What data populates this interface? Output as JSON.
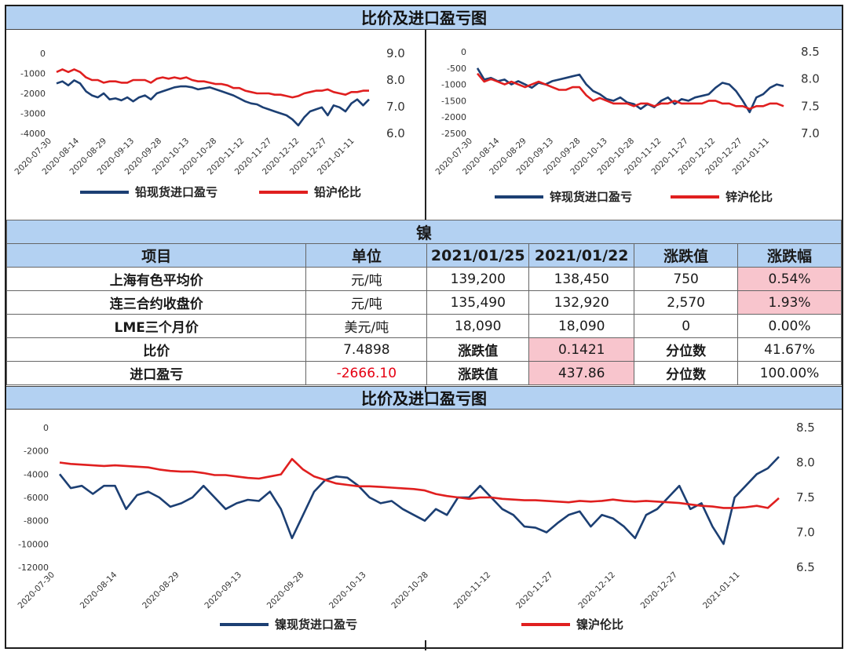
{
  "page": {
    "top_title": "比价及进口盈亏图",
    "mid_title": "比价及进口盈亏图"
  },
  "colors": {
    "blue_series": "#1c3f73",
    "red_series": "#e01f1f",
    "header_bg": "#b3d1f2",
    "highlight": "#f8c5cd"
  },
  "table": {
    "title": "镍",
    "headers": [
      "项目",
      "单位",
      "2021/01/25",
      "2021/01/22",
      "涨跌值",
      "涨跌幅"
    ],
    "rows": [
      {
        "item": "上海有色平均价",
        "unit": "元/吨",
        "v1": "139,200",
        "v2": "138,450",
        "chg": "750",
        "pct": "0.54%"
      },
      {
        "item": "连三合约收盘价",
        "unit": "元/吨",
        "v1": "135,490",
        "v2": "132,920",
        "chg": "2,570",
        "pct": "1.93%"
      },
      {
        "item": "LME三个月价",
        "unit": "美元/吨",
        "v1": "18,090",
        "v2": "18,090",
        "chg": "0",
        "pct": "0.00%"
      }
    ],
    "ratio_row": {
      "item": "比价",
      "value": "7.4898",
      "chg_label": "涨跌值",
      "chg": "0.1421",
      "pct_label": "分位数",
      "pct": "41.67%"
    },
    "import_row": {
      "item": "进口盈亏",
      "value": "-2666.10",
      "chg_label": "涨跌值",
      "chg": "437.86",
      "pct_label": "分位数",
      "pct": "100.00%"
    }
  },
  "chart_data": [
    {
      "id": "lead",
      "type": "line",
      "x_ticks": [
        "2020-07-30",
        "2020-08-14",
        "2020-08-29",
        "2020-09-13",
        "2020-09-28",
        "2020-10-13",
        "2020-10-28",
        "2020-11-12",
        "2020-11-27",
        "2020-12-12",
        "2020-12-27",
        "2021-01-11"
      ],
      "y_left": {
        "ticks": [
          "0",
          "-1000",
          "-2000",
          "-3000",
          "-4000"
        ],
        "range": [
          -4000,
          0
        ]
      },
      "y_right": {
        "ticks": [
          "9.0",
          "8.0",
          "7.0",
          "6.0"
        ],
        "range": [
          6.0,
          9.0
        ]
      },
      "series": [
        {
          "name": "铅现货进口盈亏",
          "axis": "left",
          "color": "#1c3f73",
          "values": [
            -1500,
            -1400,
            -1600,
            -1350,
            -1500,
            -1900,
            -2100,
            -2200,
            -2000,
            -2300,
            -2250,
            -2350,
            -2200,
            -2400,
            -2200,
            -2100,
            -2300,
            -2000,
            -1900,
            -1800,
            -1700,
            -1650,
            -1650,
            -1700,
            -1800,
            -1750,
            -1700,
            -1800,
            -1900,
            -2000,
            -2100,
            -2250,
            -2400,
            -2500,
            -2550,
            -2700,
            -2800,
            -2900,
            -3000,
            -3100,
            -3300,
            -3600,
            -3200,
            -2900,
            -2800,
            -2700,
            -3100,
            -2600,
            -2700,
            -2900,
            -2500,
            -2300,
            -2600,
            -2300
          ]
        },
        {
          "name": "铅沪伦比",
          "axis": "right",
          "color": "#e01f1f",
          "values": [
            8.3,
            8.4,
            8.3,
            8.4,
            8.3,
            8.1,
            8.0,
            8.0,
            7.9,
            7.95,
            7.95,
            7.9,
            7.9,
            8.0,
            8.0,
            8.0,
            7.9,
            8.05,
            8.1,
            8.05,
            8.1,
            8.05,
            8.1,
            8.0,
            7.95,
            7.95,
            7.9,
            7.85,
            7.85,
            7.8,
            7.7,
            7.7,
            7.6,
            7.55,
            7.5,
            7.5,
            7.5,
            7.45,
            7.45,
            7.4,
            7.35,
            7.4,
            7.5,
            7.55,
            7.6,
            7.6,
            7.65,
            7.55,
            7.5,
            7.45,
            7.55,
            7.55,
            7.6,
            7.6
          ]
        }
      ]
    },
    {
      "id": "zinc",
      "type": "line",
      "x_ticks": [
        "2020-07-30",
        "2020-08-14",
        "2020-08-29",
        "2020-09-13",
        "2020-09-28",
        "2020-10-13",
        "2020-10-28",
        "2020-11-12",
        "2020-11-27",
        "2020-12-12",
        "2020-12-27",
        "2021-01-11"
      ],
      "y_left": {
        "ticks": [
          "0",
          "-500",
          "-1000",
          "-1500",
          "-2000",
          "-2500"
        ],
        "range": [
          -2500,
          0
        ]
      },
      "y_right": {
        "ticks": [
          "8.5",
          "8.0",
          "7.5",
          "7.0"
        ],
        "range": [
          7.0,
          8.5
        ]
      },
      "series": [
        {
          "name": "锌现货进口盈亏",
          "axis": "left",
          "color": "#1c3f73",
          "values": [
            -500,
            -850,
            -800,
            -900,
            -850,
            -1000,
            -900,
            -1000,
            -1100,
            -950,
            -1000,
            -900,
            -850,
            -800,
            -750,
            -700,
            -1000,
            -1200,
            -1300,
            -1450,
            -1500,
            -1400,
            -1550,
            -1600,
            -1750,
            -1600,
            -1700,
            -1500,
            -1400,
            -1600,
            -1450,
            -1500,
            -1400,
            -1350,
            -1300,
            -1100,
            -950,
            -1000,
            -1200,
            -1500,
            -1850,
            -1400,
            -1300,
            -1100,
            -1000,
            -1050
          ]
        },
        {
          "name": "锌沪伦比",
          "axis": "right",
          "color": "#e01f1f",
          "values": [
            8.1,
            7.95,
            8.0,
            7.95,
            7.9,
            7.95,
            7.9,
            7.85,
            7.9,
            7.95,
            7.9,
            7.85,
            7.8,
            7.8,
            7.85,
            7.85,
            7.7,
            7.6,
            7.65,
            7.6,
            7.55,
            7.55,
            7.55,
            7.5,
            7.55,
            7.55,
            7.5,
            7.55,
            7.55,
            7.6,
            7.55,
            7.55,
            7.55,
            7.55,
            7.6,
            7.6,
            7.55,
            7.55,
            7.5,
            7.5,
            7.45,
            7.5,
            7.5,
            7.55,
            7.55,
            7.5
          ]
        }
      ]
    },
    {
      "id": "nickel",
      "type": "line",
      "x_ticks": [
        "2020-07-30",
        "2020-08-14",
        "2020-08-29",
        "2020-09-13",
        "2020-09-28",
        "2020-10-13",
        "2020-10-28",
        "2020-11-12",
        "2020-11-27",
        "2020-12-12",
        "2020-12-27",
        "2021-01-11"
      ],
      "y_left": {
        "ticks": [
          "0",
          "-2000",
          "-4000",
          "-6000",
          "-8000",
          "-10000",
          "-12000"
        ],
        "range": [
          -12000,
          0
        ]
      },
      "y_right": {
        "ticks": [
          "8.5",
          "8.0",
          "7.5",
          "7.0",
          "6.5"
        ],
        "range": [
          6.5,
          8.5
        ]
      },
      "series": [
        {
          "name": "镍现货进口盈亏",
          "axis": "left",
          "color": "#1c3f73",
          "values": [
            -4000,
            -5200,
            -5000,
            -5700,
            -5000,
            -5000,
            -7000,
            -5800,
            -5500,
            -6000,
            -6800,
            -6500,
            -6000,
            -5000,
            -6000,
            -7000,
            -6500,
            -6200,
            -6300,
            -5500,
            -7000,
            -9500,
            -7500,
            -5500,
            -4500,
            -4200,
            -4300,
            -5000,
            -6000,
            -6500,
            -6300,
            -7000,
            -7500,
            -8000,
            -7000,
            -7500,
            -6000,
            -6000,
            -5000,
            -6000,
            -7000,
            -7500,
            -8500,
            -8600,
            -9000,
            -8200,
            -7500,
            -7200,
            -8500,
            -7500,
            -7800,
            -8500,
            -9500,
            -7500,
            -7000,
            -6000,
            -5000,
            -7000,
            -6500,
            -8500,
            -10000,
            -6000,
            -5000,
            -4000,
            -3500,
            -2500
          ]
        },
        {
          "name": "镍沪伦比",
          "axis": "right",
          "color": "#e01f1f",
          "values": [
            8.0,
            7.98,
            7.97,
            7.96,
            7.95,
            7.96,
            7.95,
            7.94,
            7.93,
            7.9,
            7.88,
            7.87,
            7.87,
            7.85,
            7.82,
            7.82,
            7.8,
            7.78,
            7.77,
            7.8,
            7.83,
            8.05,
            7.9,
            7.8,
            7.75,
            7.7,
            7.68,
            7.66,
            7.66,
            7.65,
            7.64,
            7.63,
            7.62,
            7.6,
            7.55,
            7.52,
            7.5,
            7.48,
            7.5,
            7.5,
            7.48,
            7.47,
            7.46,
            7.46,
            7.45,
            7.44,
            7.43,
            7.45,
            7.44,
            7.45,
            7.47,
            7.45,
            7.44,
            7.45,
            7.44,
            7.43,
            7.42,
            7.4,
            7.38,
            7.37,
            7.35,
            7.35,
            7.36,
            7.38,
            7.35,
            7.49
          ]
        }
      ]
    }
  ]
}
